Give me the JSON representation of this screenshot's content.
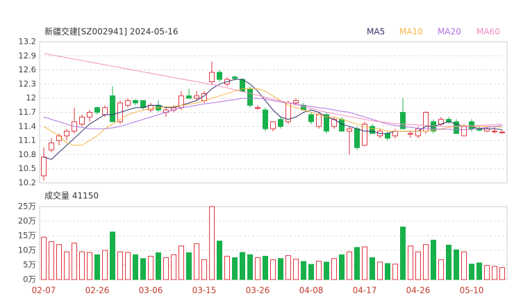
{
  "chart_data": [
    {
      "type": "candlestick",
      "title": "新疆交建[SZ002941] 2024-05-16",
      "up_color": "#e0333c",
      "down_color": "#18b04a",
      "open": [
        10.35,
        10.9,
        11.1,
        11.2,
        11.3,
        11.45,
        11.6,
        11.8,
        11.65,
        12.05,
        11.5,
        11.85,
        11.95,
        11.95,
        11.75,
        11.85,
        11.7,
        11.75,
        11.8,
        12.05,
        12.0,
        11.95,
        12.35,
        12.55,
        12.3,
        12.45,
        12.4,
        12.2,
        11.8,
        11.75,
        11.35,
        11.55,
        11.5,
        11.9,
        11.85,
        11.65,
        11.4,
        11.65,
        11.4,
        11.55,
        11.3,
        11.35,
        11.0,
        11.4,
        11.2,
        11.25,
        11.2,
        11.7,
        11.25,
        11.2,
        11.3,
        11.5,
        11.45,
        11.55,
        11.5,
        11.2,
        11.5,
        11.35,
        11.3,
        11.3,
        11.28
      ],
      "high": [
        10.95,
        11.15,
        11.25,
        11.35,
        11.8,
        11.65,
        11.75,
        11.82,
        11.85,
        12.25,
        11.95,
        12.0,
        11.98,
        11.95,
        11.9,
        11.95,
        11.8,
        11.85,
        12.15,
        12.2,
        12.15,
        12.15,
        12.78,
        12.6,
        12.45,
        12.48,
        12.42,
        12.25,
        11.85,
        11.8,
        11.5,
        11.6,
        11.95,
        12.0,
        11.9,
        11.7,
        11.7,
        11.7,
        11.6,
        11.6,
        11.4,
        11.4,
        11.5,
        11.45,
        11.35,
        11.3,
        11.35,
        12.0,
        11.3,
        11.4,
        11.72,
        11.55,
        11.6,
        11.6,
        11.55,
        11.45,
        11.55,
        11.4,
        11.4,
        11.4,
        11.32
      ],
      "low": [
        10.25,
        10.85,
        11.0,
        11.1,
        11.25,
        11.4,
        11.5,
        11.65,
        11.6,
        11.5,
        11.45,
        11.8,
        11.85,
        11.75,
        11.7,
        11.7,
        11.6,
        11.7,
        11.75,
        12.0,
        11.95,
        11.9,
        12.3,
        12.35,
        12.25,
        12.38,
        12.15,
        11.8,
        11.75,
        11.3,
        11.3,
        11.35,
        11.45,
        11.85,
        11.75,
        11.45,
        11.35,
        11.25,
        11.35,
        11.3,
        10.8,
        10.9,
        10.98,
        11.25,
        11.15,
        11.1,
        11.15,
        11.35,
        11.15,
        11.15,
        11.25,
        11.25,
        11.4,
        11.45,
        11.25,
        11.2,
        11.3,
        11.3,
        11.28,
        11.25,
        11.25
      ],
      "close": [
        10.75,
        11.05,
        11.2,
        11.3,
        11.5,
        11.6,
        11.7,
        11.7,
        11.8,
        11.5,
        11.9,
        11.95,
        11.9,
        11.8,
        11.85,
        11.75,
        11.75,
        11.8,
        12.05,
        12.0,
        12.05,
        12.1,
        12.55,
        12.4,
        12.4,
        12.42,
        12.15,
        11.85,
        11.8,
        11.35,
        11.5,
        11.4,
        11.9,
        11.95,
        11.75,
        11.5,
        11.65,
        11.3,
        11.55,
        11.3,
        11.35,
        10.95,
        11.45,
        11.25,
        11.3,
        11.15,
        11.3,
        11.35,
        11.25,
        11.35,
        11.7,
        11.3,
        11.55,
        11.5,
        11.25,
        11.4,
        11.35,
        11.32,
        11.35,
        11.3,
        11.28
      ],
      "series": [
        {
          "name": "MA5",
          "color": "#2f2f6b",
          "values": [
            10.75,
            10.7,
            10.85,
            11.0,
            11.15,
            11.3,
            11.45,
            11.55,
            11.65,
            11.65,
            11.7,
            11.75,
            11.8,
            11.8,
            11.85,
            11.85,
            11.8,
            11.8,
            11.85,
            11.9,
            11.95,
            12.05,
            12.2,
            12.3,
            12.35,
            12.4,
            12.4,
            12.3,
            12.15,
            11.95,
            11.75,
            11.6,
            11.55,
            11.6,
            11.7,
            11.75,
            11.7,
            11.6,
            11.55,
            11.45,
            11.4,
            11.35,
            11.3,
            11.3,
            11.25,
            11.25,
            11.3,
            11.3,
            11.3,
            11.3,
            11.4,
            11.4,
            11.45,
            11.5,
            11.45,
            11.4,
            11.4,
            11.35,
            11.35,
            11.35,
            11.33
          ]
        },
        {
          "name": "MA10",
          "color": "#f5b342",
          "values": [
            11.4,
            11.3,
            11.2,
            11.05,
            11.0,
            11.0,
            11.1,
            11.2,
            11.35,
            11.45,
            11.55,
            11.65,
            11.7,
            11.75,
            11.78,
            11.8,
            11.82,
            11.82,
            11.85,
            11.87,
            11.9,
            11.95,
            12.0,
            12.05,
            12.1,
            12.15,
            12.2,
            12.2,
            12.2,
            12.15,
            12.05,
            11.95,
            11.85,
            11.8,
            11.75,
            11.7,
            11.65,
            11.6,
            11.6,
            11.55,
            11.5,
            11.45,
            11.4,
            11.35,
            11.35,
            11.3,
            11.3,
            11.3,
            11.3,
            11.3,
            11.3,
            11.32,
            11.35,
            11.38,
            11.4,
            11.42,
            11.4,
            11.4,
            11.4,
            11.4,
            11.38
          ]
        },
        {
          "name": "MA20",
          "color": "#b070e0",
          "values": [
            11.6,
            11.55,
            11.5,
            11.45,
            11.4,
            11.38,
            11.35,
            11.35,
            11.35,
            11.37,
            11.4,
            11.45,
            11.5,
            11.55,
            11.6,
            11.65,
            11.7,
            11.75,
            11.8,
            11.82,
            11.85,
            11.88,
            11.9,
            11.92,
            11.95,
            11.97,
            12.0,
            12.0,
            12.0,
            11.98,
            11.95,
            11.92,
            11.9,
            11.88,
            11.85,
            11.82,
            11.8,
            11.78,
            11.75,
            11.72,
            11.7,
            11.65,
            11.6,
            11.55,
            11.5,
            11.45,
            11.42,
            11.4,
            11.38,
            11.36,
            11.35,
            11.35,
            11.34,
            11.34,
            11.33,
            11.33,
            11.34,
            11.36,
            11.38,
            11.4,
            11.42
          ]
        },
        {
          "name": "MA60",
          "color": "#f28cc0",
          "values": [
            12.95,
            12.92,
            12.89,
            12.86,
            12.83,
            12.8,
            12.77,
            12.74,
            12.71,
            12.68,
            12.65,
            12.62,
            12.59,
            12.56,
            12.53,
            12.5,
            12.47,
            12.44,
            12.41,
            12.38,
            12.35,
            12.32,
            12.29,
            12.26,
            12.22,
            12.18,
            12.14,
            12.1,
            12.06,
            12.02,
            11.98,
            11.94,
            11.9,
            11.86,
            11.82,
            11.78,
            11.74,
            11.7,
            11.67,
            11.64,
            11.61,
            11.58,
            11.55,
            11.52,
            11.5,
            11.48,
            11.46,
            11.45,
            11.44,
            11.43,
            11.42,
            11.41,
            11.4,
            11.4,
            11.4,
            11.4,
            11.41,
            11.42,
            11.43,
            11.44,
            11.45
          ]
        }
      ],
      "ylim": [
        10.2,
        13.2
      ],
      "yticks": [
        10.2,
        10.5,
        10.8,
        11.1,
        11.4,
        11.7,
        12,
        12.3,
        12.6,
        12.9,
        13.2
      ],
      "grid": true
    },
    {
      "type": "bar",
      "title": "成交量 41150",
      "categories": [
        "02-07",
        null,
        null,
        null,
        null,
        null,
        null,
        "02-26",
        null,
        null,
        null,
        null,
        null,
        null,
        "03-06",
        null,
        null,
        null,
        null,
        null,
        null,
        "03-15",
        null,
        null,
        null,
        null,
        null,
        null,
        "03-26",
        null,
        null,
        null,
        null,
        null,
        null,
        "04-08",
        null,
        null,
        null,
        null,
        null,
        null,
        "04-17",
        null,
        null,
        null,
        null,
        null,
        null,
        "04-26",
        null,
        null,
        null,
        null,
        null,
        null,
        "05-10",
        null,
        null,
        null,
        null
      ],
      "values": [
        14.5,
        13,
        12,
        9.5,
        12.5,
        9.5,
        9.3,
        8.5,
        10,
        16.3,
        9.5,
        9.3,
        8.5,
        7.2,
        8,
        9.2,
        7.5,
        8.5,
        11.5,
        9.2,
        12.3,
        6.8,
        25,
        13.2,
        8,
        7.5,
        9.3,
        8.5,
        7.5,
        8,
        6.8,
        7.2,
        8.2,
        7,
        6.2,
        5.2,
        6.3,
        6,
        7.2,
        8.5,
        9.5,
        11,
        11.2,
        7.5,
        6,
        5.5,
        5.3,
        18,
        11.5,
        9.5,
        12,
        13.5,
        6.8,
        11.8,
        10.2,
        9.5,
        5.3,
        5.7,
        4.8,
        4.5,
        4.115
      ],
      "ylim": [
        0,
        25
      ],
      "yticks": [
        {
          "value": 0,
          "label": "0万"
        },
        {
          "value": 5,
          "label": "5万"
        },
        {
          "value": 10,
          "label": "10万"
        },
        {
          "value": 15,
          "label": "15万"
        },
        {
          "value": 20,
          "label": "20万"
        },
        {
          "value": 25,
          "label": "25万"
        }
      ],
      "grid": true
    }
  ]
}
